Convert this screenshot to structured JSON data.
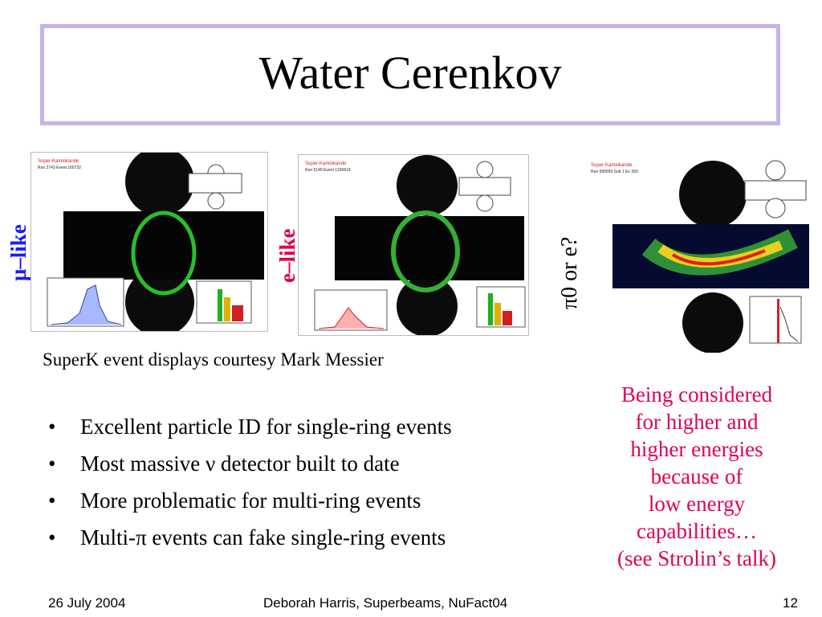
{
  "slide": {
    "title": "Water Cerenkov",
    "caption": "SuperK event displays courtesy Mark Messier"
  },
  "panels": [
    {
      "side_label": "μ–like",
      "side_label_color": "#1a1aff",
      "header": "Super-Kamiokande",
      "sub": "Run 2743 Event 160732"
    },
    {
      "side_label": "e–like",
      "side_label_color": "#e0004a",
      "header": "Super-Kamiokande",
      "sub": "Run 5149 Event 1330619"
    },
    {
      "side_label": "π0 or e?",
      "side_label_color": "#000000",
      "header": "Super-Kamiokande",
      "sub": "Run 999999 Sub 1 Ev 393"
    }
  ],
  "bullets": [
    "Excellent particle ID for single-ring events",
    "Most massive ν detector built to date",
    "More problematic for multi-ring events",
    "Multi-π events can fake single-ring events"
  ],
  "note_lines": [
    "Being considered",
    "for higher and",
    "higher energies",
    "because of",
    "low energy",
    "capabilities…",
    "(see Strolin’s talk)"
  ],
  "footer": {
    "date": "26 July 2004",
    "center": "Deborah Harris, Superbeams, NuFact04",
    "page": "12"
  },
  "colors": {
    "title_border": "#c8b0ec",
    "note": "#e0005a"
  }
}
